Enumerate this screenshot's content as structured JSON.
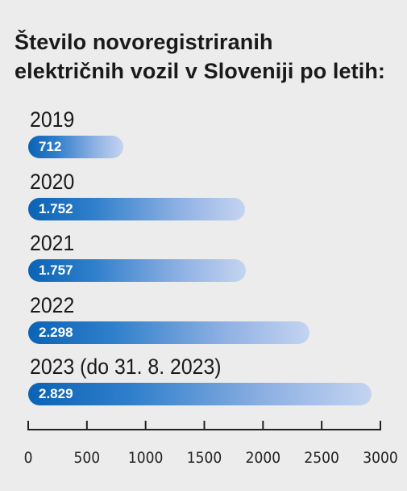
{
  "chart_data": {
    "type": "bar",
    "orientation": "horizontal",
    "title_lines": [
      "Število novoregistriranih",
      "električnih vozil v Sloveniji po letih:"
    ],
    "categories": [
      "2019",
      "2020",
      "2021",
      "2022",
      "2023 (do 31. 8. 2023)"
    ],
    "values": [
      712,
      1752,
      1757,
      2298,
      2829
    ],
    "value_labels": [
      "712",
      "1.752",
      "1.757",
      "2.298",
      "2.829"
    ],
    "xlim": [
      0,
      3000
    ],
    "xticks": [
      0,
      500,
      1000,
      1500,
      2000,
      2500,
      3000
    ],
    "xtick_labels": [
      "0",
      "500",
      "1000",
      "1500",
      "2000",
      "2500",
      "3000"
    ],
    "grid": false,
    "legend": "none",
    "bar_color_start": "#0b63b5",
    "bar_color_end": "#c4d4f1"
  }
}
